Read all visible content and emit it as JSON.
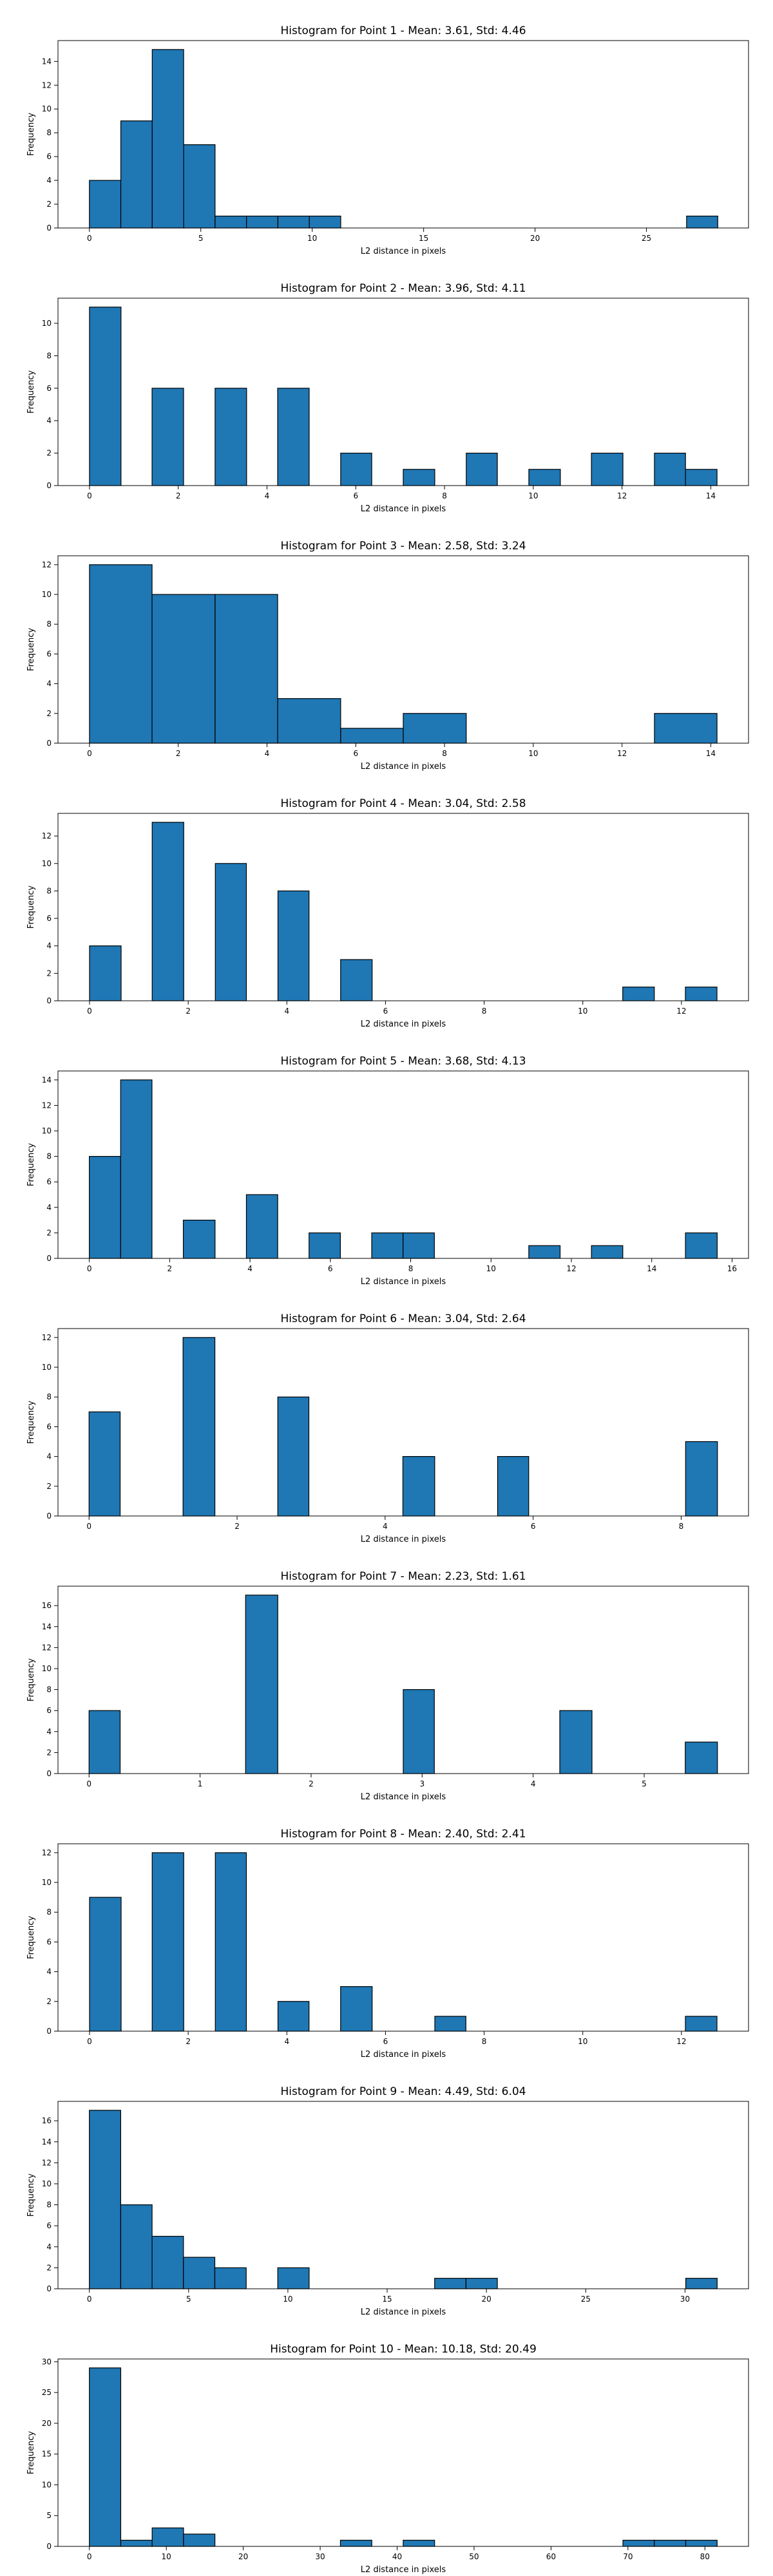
{
  "chart_data": [
    {
      "type": "bar",
      "title": "Histogram for Point 1 - Mean: 3.61, Std: 4.46",
      "xlabel": "L2 distance in pixels",
      "ylabel": "Frequency",
      "xlim": [
        -1.41,
        29.58
      ],
      "ylim": [
        0,
        15.75
      ],
      "xticks": [
        0,
        5,
        10,
        15,
        20,
        25
      ],
      "yticks": [
        0,
        2,
        4,
        6,
        8,
        10,
        12,
        14
      ],
      "bins": [
        {
          "x0": 0.0,
          "x1": 1.41,
          "count": 4
        },
        {
          "x0": 1.41,
          "x1": 2.82,
          "count": 9
        },
        {
          "x0": 2.82,
          "x1": 4.23,
          "count": 15
        },
        {
          "x0": 4.23,
          "x1": 5.64,
          "count": 7
        },
        {
          "x0": 5.64,
          "x1": 7.05,
          "count": 1
        },
        {
          "x0": 7.05,
          "x1": 8.46,
          "count": 1
        },
        {
          "x0": 8.46,
          "x1": 9.87,
          "count": 1
        },
        {
          "x0": 9.87,
          "x1": 11.28,
          "count": 1
        },
        {
          "x0": 26.8,
          "x1": 28.2,
          "count": 1
        }
      ],
      "color": "#1f77b4"
    },
    {
      "type": "bar",
      "title": "Histogram for Point 2 - Mean: 3.96, Std: 4.11",
      "xlabel": "L2 distance in pixels",
      "ylabel": "Frequency",
      "xlim": [
        -0.71,
        14.85
      ],
      "ylim": [
        0,
        11.55
      ],
      "xticks": [
        0,
        2,
        4,
        6,
        8,
        10,
        12,
        14
      ],
      "yticks": [
        0,
        2,
        4,
        6,
        8,
        10
      ],
      "bins": [
        {
          "x0": 0.0,
          "x1": 0.71,
          "count": 11
        },
        {
          "x0": 1.41,
          "x1": 2.12,
          "count": 6
        },
        {
          "x0": 2.83,
          "x1": 3.54,
          "count": 6
        },
        {
          "x0": 4.24,
          "x1": 4.95,
          "count": 6
        },
        {
          "x0": 5.66,
          "x1": 6.36,
          "count": 2
        },
        {
          "x0": 7.07,
          "x1": 7.78,
          "count": 1
        },
        {
          "x0": 8.49,
          "x1": 9.19,
          "count": 2
        },
        {
          "x0": 9.9,
          "x1": 10.61,
          "count": 1
        },
        {
          "x0": 11.31,
          "x1": 12.02,
          "count": 2
        },
        {
          "x0": 12.73,
          "x1": 13.43,
          "count": 2
        },
        {
          "x0": 13.43,
          "x1": 14.14,
          "count": 1
        }
      ],
      "color": "#1f77b4"
    },
    {
      "type": "bar",
      "title": "Histogram for Point 3 - Mean: 2.58, Std: 3.24",
      "xlabel": "L2 distance in pixels",
      "ylabel": "Frequency",
      "xlim": [
        -0.71,
        14.85
      ],
      "ylim": [
        0,
        12.6
      ],
      "xticks": [
        0,
        2,
        4,
        6,
        8,
        10,
        12,
        14
      ],
      "yticks": [
        0,
        2,
        4,
        6,
        8,
        10,
        12
      ],
      "bins": [
        {
          "x0": 0.0,
          "x1": 1.41,
          "count": 12
        },
        {
          "x0": 1.41,
          "x1": 2.83,
          "count": 10
        },
        {
          "x0": 2.83,
          "x1": 4.24,
          "count": 10
        },
        {
          "x0": 4.24,
          "x1": 5.66,
          "count": 3
        },
        {
          "x0": 5.66,
          "x1": 7.07,
          "count": 1
        },
        {
          "x0": 7.07,
          "x1": 8.49,
          "count": 2
        },
        {
          "x0": 12.73,
          "x1": 14.14,
          "count": 2
        }
      ],
      "color": "#1f77b4"
    },
    {
      "type": "bar",
      "title": "Histogram for Point 4 - Mean: 3.04, Std: 2.58",
      "xlabel": "L2 distance in pixels",
      "ylabel": "Frequency",
      "xlim": [
        -0.64,
        13.36
      ],
      "ylim": [
        0,
        13.65
      ],
      "xticks": [
        0,
        2,
        4,
        6,
        8,
        10,
        12
      ],
      "yticks": [
        0,
        2,
        4,
        6,
        8,
        10,
        12
      ],
      "bins": [
        {
          "x0": 0.0,
          "x1": 0.64,
          "count": 4
        },
        {
          "x0": 1.27,
          "x1": 1.91,
          "count": 13
        },
        {
          "x0": 2.55,
          "x1": 3.18,
          "count": 10
        },
        {
          "x0": 3.82,
          "x1": 4.45,
          "count": 8
        },
        {
          "x0": 5.09,
          "x1": 5.73,
          "count": 3
        },
        {
          "x0": 10.81,
          "x1": 11.45,
          "count": 1
        },
        {
          "x0": 12.08,
          "x1": 12.72,
          "count": 1
        }
      ],
      "color": "#1f77b4"
    },
    {
      "type": "bar",
      "title": "Histogram for Point 5 - Mean: 3.68, Std: 4.13",
      "xlabel": "L2 distance in pixels",
      "ylabel": "Frequency",
      "xlim": [
        -0.78,
        16.41
      ],
      "ylim": [
        0,
        14.7
      ],
      "xticks": [
        0,
        2,
        4,
        6,
        8,
        10,
        12,
        14,
        16
      ],
      "yticks": [
        0,
        2,
        4,
        6,
        8,
        10,
        12,
        14
      ],
      "bins": [
        {
          "x0": 0.0,
          "x1": 0.78,
          "count": 8
        },
        {
          "x0": 0.78,
          "x1": 1.56,
          "count": 14
        },
        {
          "x0": 2.34,
          "x1": 3.13,
          "count": 3
        },
        {
          "x0": 3.91,
          "x1": 4.69,
          "count": 5
        },
        {
          "x0": 5.47,
          "x1": 6.25,
          "count": 2
        },
        {
          "x0": 7.03,
          "x1": 7.81,
          "count": 2
        },
        {
          "x0": 7.81,
          "x1": 8.59,
          "count": 2
        },
        {
          "x0": 10.94,
          "x1": 11.72,
          "count": 1
        },
        {
          "x0": 12.5,
          "x1": 13.28,
          "count": 1
        },
        {
          "x0": 14.84,
          "x1": 15.63,
          "count": 2
        }
      ],
      "color": "#1f77b4"
    },
    {
      "type": "bar",
      "title": "Histogram for Point 6 - Mean: 3.04, Std: 2.64",
      "xlabel": "L2 distance in pixels",
      "ylabel": "Frequency",
      "xlim": [
        -0.42,
        8.91
      ],
      "ylim": [
        0,
        12.6
      ],
      "xticks": [
        0,
        2,
        4,
        6,
        8
      ],
      "yticks": [
        0,
        2,
        4,
        6,
        8,
        10,
        12
      ],
      "bins": [
        {
          "x0": 0.0,
          "x1": 0.42,
          "count": 7
        },
        {
          "x0": 1.27,
          "x1": 1.7,
          "count": 12
        },
        {
          "x0": 2.55,
          "x1": 2.97,
          "count": 8
        },
        {
          "x0": 4.24,
          "x1": 4.67,
          "count": 4
        },
        {
          "x0": 5.52,
          "x1": 5.94,
          "count": 4
        },
        {
          "x0": 8.06,
          "x1": 8.49,
          "count": 5
        }
      ],
      "color": "#1f77b4"
    },
    {
      "type": "bar",
      "title": "Histogram for Point 7 - Mean: 2.23, Std: 1.61",
      "xlabel": "L2 distance in pixels",
      "ylabel": "Frequency",
      "xlim": [
        -0.28,
        5.94
      ],
      "ylim": [
        0,
        17.85
      ],
      "xticks": [
        0,
        1,
        2,
        3,
        4,
        5
      ],
      "yticks": [
        0,
        2,
        4,
        6,
        8,
        10,
        12,
        14,
        16
      ],
      "bins": [
        {
          "x0": 0.0,
          "x1": 0.28,
          "count": 6
        },
        {
          "x0": 1.41,
          "x1": 1.7,
          "count": 17
        },
        {
          "x0": 2.83,
          "x1": 3.11,
          "count": 8
        },
        {
          "x0": 4.24,
          "x1": 4.53,
          "count": 6
        },
        {
          "x0": 5.37,
          "x1": 5.66,
          "count": 3
        }
      ],
      "color": "#1f77b4"
    },
    {
      "type": "bar",
      "title": "Histogram for Point 8 - Mean: 2.40, Std: 2.41",
      "xlabel": "L2 distance in pixels",
      "ylabel": "Frequency",
      "xlim": [
        -0.64,
        13.36
      ],
      "ylim": [
        0,
        12.6
      ],
      "xticks": [
        0,
        2,
        4,
        6,
        8,
        10,
        12
      ],
      "yticks": [
        0,
        2,
        4,
        6,
        8,
        10,
        12
      ],
      "bins": [
        {
          "x0": 0.0,
          "x1": 0.64,
          "count": 9
        },
        {
          "x0": 1.27,
          "x1": 1.91,
          "count": 12
        },
        {
          "x0": 2.55,
          "x1": 3.18,
          "count": 12
        },
        {
          "x0": 3.82,
          "x1": 4.45,
          "count": 2
        },
        {
          "x0": 5.09,
          "x1": 5.73,
          "count": 3
        },
        {
          "x0": 7.0,
          "x1": 7.63,
          "count": 1
        },
        {
          "x0": 12.08,
          "x1": 12.72,
          "count": 1
        }
      ],
      "color": "#1f77b4"
    },
    {
      "type": "bar",
      "title": "Histogram for Point 9 - Mean: 4.49, Std: 6.04",
      "xlabel": "L2 distance in pixels",
      "ylabel": "Frequency",
      "xlim": [
        -1.58,
        33.2
      ],
      "ylim": [
        0,
        17.85
      ],
      "xticks": [
        0,
        5,
        10,
        15,
        20,
        25,
        30
      ],
      "yticks": [
        0,
        2,
        4,
        6,
        8,
        10,
        12,
        14,
        16
      ],
      "bins": [
        {
          "x0": 0.0,
          "x1": 1.58,
          "count": 17
        },
        {
          "x0": 1.58,
          "x1": 3.16,
          "count": 8
        },
        {
          "x0": 3.16,
          "x1": 4.74,
          "count": 5
        },
        {
          "x0": 4.74,
          "x1": 6.32,
          "count": 3
        },
        {
          "x0": 6.32,
          "x1": 7.9,
          "count": 2
        },
        {
          "x0": 9.49,
          "x1": 11.07,
          "count": 2
        },
        {
          "x0": 17.39,
          "x1": 18.97,
          "count": 1
        },
        {
          "x0": 18.97,
          "x1": 20.55,
          "count": 1
        },
        {
          "x0": 30.04,
          "x1": 31.62,
          "count": 1
        }
      ],
      "color": "#1f77b4"
    },
    {
      "type": "bar",
      "title": "Histogram for Point 10 - Mean: 10.18, Std: 20.49",
      "xlabel": "L2 distance in pixels",
      "ylabel": "Frequency",
      "xlim": [
        -4.08,
        85.67
      ],
      "ylim": [
        0,
        30.45
      ],
      "xticks": [
        0,
        10,
        20,
        30,
        40,
        50,
        60,
        70,
        80
      ],
      "yticks": [
        0,
        5,
        10,
        15,
        20,
        25,
        30
      ],
      "bins": [
        {
          "x0": 0.0,
          "x1": 4.08,
          "count": 29
        },
        {
          "x0": 4.08,
          "x1": 8.16,
          "count": 1
        },
        {
          "x0": 8.16,
          "x1": 12.24,
          "count": 3
        },
        {
          "x0": 12.24,
          "x1": 16.32,
          "count": 2
        },
        {
          "x0": 32.63,
          "x1": 36.71,
          "count": 1
        },
        {
          "x0": 40.79,
          "x1": 44.87,
          "count": 1
        },
        {
          "x0": 69.35,
          "x1": 73.43,
          "count": 1
        },
        {
          "x0": 73.43,
          "x1": 77.51,
          "count": 1
        },
        {
          "x0": 77.51,
          "x1": 81.59,
          "count": 1
        }
      ],
      "color": "#1f77b4"
    }
  ]
}
